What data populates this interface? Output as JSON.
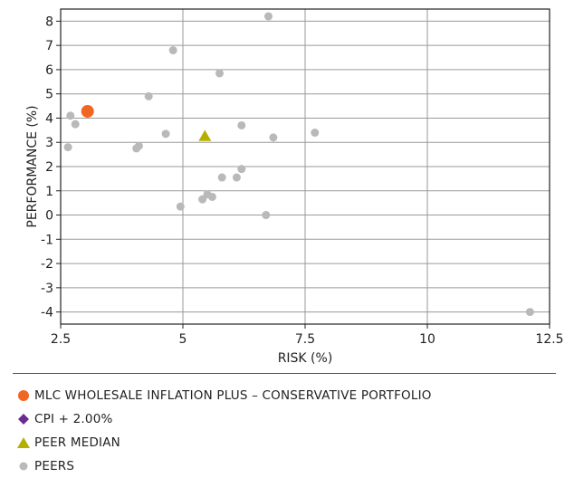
{
  "chart_data": {
    "type": "scatter",
    "title": "",
    "xlabel": "RISK (%)",
    "ylabel": "PERFORMANCE (%)",
    "xlim": [
      2.5,
      12.5
    ],
    "ylim": [
      -4.5,
      8.5
    ],
    "x_ticks": [
      "2.5",
      "5",
      "7.5",
      "10",
      "12.5"
    ],
    "y_ticks": [
      "8",
      "7",
      "6",
      "5",
      "4",
      "3",
      "2",
      "1",
      "0",
      "-1",
      "-2",
      "-3",
      "-4"
    ],
    "grid": true,
    "legend_position": "bottom",
    "series": [
      {
        "name": "MLC WHOLESALE INFLATION PLUS – CONSERVATIVE PORTFOLIO",
        "marker": "circle-large",
        "color": "#f26522",
        "points": [
          [
            3.05,
            4.28
          ]
        ]
      },
      {
        "name": "CPI + 2.00%",
        "marker": "diamond",
        "color": "#6a2c91",
        "points": []
      },
      {
        "name": "PEER MEDIAN",
        "marker": "triangle",
        "color": "#b5b000",
        "points": [
          [
            5.45,
            3.25
          ]
        ]
      },
      {
        "name": "PEERS",
        "marker": "circle",
        "color": "#b9b9b9",
        "points": [
          [
            2.65,
            2.8
          ],
          [
            2.7,
            4.1
          ],
          [
            2.8,
            3.75
          ],
          [
            4.05,
            2.75
          ],
          [
            4.1,
            2.85
          ],
          [
            4.3,
            4.9
          ],
          [
            4.65,
            3.35
          ],
          [
            4.8,
            6.8
          ],
          [
            4.95,
            0.35
          ],
          [
            5.4,
            0.65
          ],
          [
            5.5,
            0.85
          ],
          [
            5.6,
            0.75
          ],
          [
            5.75,
            5.85
          ],
          [
            5.8,
            1.55
          ],
          [
            6.1,
            1.55
          ],
          [
            6.2,
            3.7
          ],
          [
            6.2,
            1.9
          ],
          [
            6.7,
            0.0
          ],
          [
            6.75,
            8.2
          ],
          [
            6.85,
            3.2
          ],
          [
            7.7,
            3.4
          ],
          [
            12.1,
            -4.0
          ]
        ]
      }
    ]
  },
  "legend": {
    "items": [
      {
        "label": "MLC WHOLESALE INFLATION PLUS – CONSERVATIVE PORTFOLIO",
        "marker": "circle-large",
        "color": "#f26522"
      },
      {
        "label": "CPI + 2.00%",
        "marker": "diamond",
        "color": "#6a2c91"
      },
      {
        "label": "PEER MEDIAN",
        "marker": "triangle",
        "color": "#b5b000"
      },
      {
        "label": "PEERS",
        "marker": "circle",
        "color": "#b9b9b9"
      }
    ]
  }
}
